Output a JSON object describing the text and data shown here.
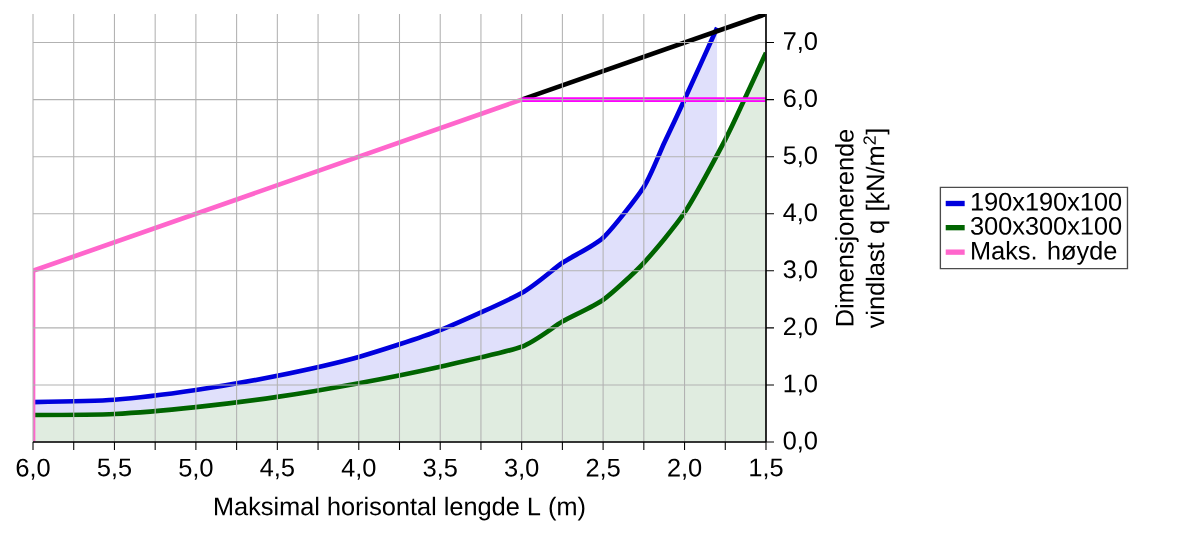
{
  "chart_data": {
    "type": "line",
    "xlabel": "Maksimal horisontal lengde L (m)",
    "ylabel": "Dimensjonerende vindlast q [kN/m$^{2}$]",
    "xlim": [
      6.0,
      1.5
    ],
    "ylim": [
      0,
      7.5
    ],
    "xticks": [
      {
        "value": 6.0,
        "label": "6,0"
      },
      {
        "value": 5.75,
        "label": null
      },
      {
        "value": 5.5,
        "label": "5,5"
      },
      {
        "value": 5.25,
        "label": null
      },
      {
        "value": 5.0,
        "label": "5,0"
      },
      {
        "value": 4.75,
        "label": null
      },
      {
        "value": 4.5,
        "label": "4,5"
      },
      {
        "value": 4.25,
        "label": null
      },
      {
        "value": 4.0,
        "label": "4,0"
      },
      {
        "value": 3.75,
        "label": null
      },
      {
        "value": 3.5,
        "label": "3,5"
      },
      {
        "value": 3.25,
        "label": null
      },
      {
        "value": 3.0,
        "label": "3,0"
      },
      {
        "value": 2.75,
        "label": null
      },
      {
        "value": 2.5,
        "label": "2,5"
      },
      {
        "value": 2.25,
        "label": null
      },
      {
        "value": 2.0,
        "label": "2,0"
      },
      {
        "value": 1.75,
        "label": null
      },
      {
        "value": 1.5,
        "label": "1,5"
      }
    ],
    "yticks": [
      {
        "value": 0,
        "label": "0,0"
      },
      {
        "value": 1,
        "label": "1,0"
      },
      {
        "value": 2,
        "label": "2,0"
      },
      {
        "value": 3,
        "label": "3,0"
      },
      {
        "value": 4,
        "label": "4,0"
      },
      {
        "value": 5,
        "label": "5,0"
      },
      {
        "value": 6,
        "label": "6,0"
      },
      {
        "value": 7,
        "label": "7,0"
      }
    ],
    "grid": true,
    "legend": "right",
    "series": [
      {
        "name": "190x190x100",
        "type": "area",
        "color": "#0000dd",
        "x": [
          6.0,
          5.5,
          5.0,
          4.5,
          4.0,
          3.5,
          3.0,
          2.75,
          2.5,
          2.25,
          2.125,
          2.0,
          1.8
        ],
        "values": [
          0.7,
          0.74,
          0.91,
          1.16,
          1.49,
          1.96,
          2.61,
          3.14,
          3.58,
          4.47,
          5.24,
          6.0,
          7.26
        ]
      },
      {
        "name": "300x300x100",
        "type": "area",
        "color": "#006400",
        "x": [
          6.0,
          5.5,
          5.0,
          4.5,
          4.0,
          3.5,
          3.0,
          2.75,
          2.5,
          2.25,
          2.0,
          1.75,
          1.625,
          1.5
        ],
        "values": [
          0.47,
          0.49,
          0.61,
          0.79,
          1.03,
          1.32,
          1.67,
          2.11,
          2.49,
          3.14,
          4.02,
          5.3,
          6.05,
          6.82
        ]
      },
      {
        "name": "Maks. høyde",
        "color": "#ff66cc",
        "x": [
          6.0,
          6.0,
          3.0
        ],
        "values": [
          0,
          3.0,
          6.0
        ]
      },
      {
        "color": "#000000",
        "x": [
          3.0,
          1.5
        ],
        "values": [
          6.0,
          7.5
        ]
      },
      {
        "color": "#ff00ff",
        "x": [
          3.0,
          1.5
        ],
        "values": [
          6.0,
          6.0
        ]
      }
    ]
  }
}
